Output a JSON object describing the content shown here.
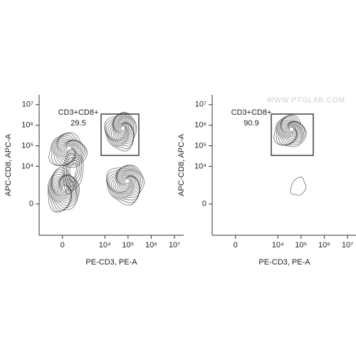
{
  "chart_data": [
    {
      "type": "contour",
      "xlabel": "PE-CD3, PE-A",
      "ylabel": "APC-CD8, APC-A",
      "xlim": [
        -1500,
        25000000
      ],
      "ylim": [
        -5000,
        30000000
      ],
      "xticks": [
        0,
        {
          "value": 10000,
          "label": "10⁴"
        },
        {
          "value": 100000,
          "label": "10⁵"
        },
        {
          "value": 1000000,
          "label": "10⁶"
        },
        {
          "value": 10000000,
          "label": "10⁷"
        }
      ],
      "yticks": [
        0,
        {
          "value": 10000,
          "label": "10⁴"
        },
        {
          "value": 100000,
          "label": "10⁵"
        },
        {
          "value": 1000000,
          "label": "10⁶"
        },
        {
          "value": 10000000,
          "label": "10⁷"
        }
      ],
      "gate": {
        "label": "CD3+CD8+",
        "value": 29.5
      }
    },
    {
      "type": "contour",
      "xlabel": "PE-CD3, PE-A",
      "ylabel": "APC-CD8, APC-A",
      "xlim": [
        -1500,
        25000000
      ],
      "ylim": [
        -5000,
        30000000
      ],
      "xticks": [
        0,
        {
          "value": 10000,
          "label": "10⁴"
        },
        {
          "value": 100000,
          "label": "10⁵"
        },
        {
          "value": 1000000,
          "label": "10⁶"
        },
        {
          "value": 10000000,
          "label": "10⁷"
        }
      ],
      "yticks": [
        0,
        {
          "value": 10000,
          "label": "10⁴"
        },
        {
          "value": 100000,
          "label": "10⁵"
        },
        {
          "value": 1000000,
          "label": "10⁶"
        },
        {
          "value": 10000000,
          "label": "10⁷"
        }
      ],
      "gate": {
        "label": "CD3+CD8+",
        "value": 90.9
      },
      "watermark": "WWW.PTGLAB.COM"
    }
  ]
}
